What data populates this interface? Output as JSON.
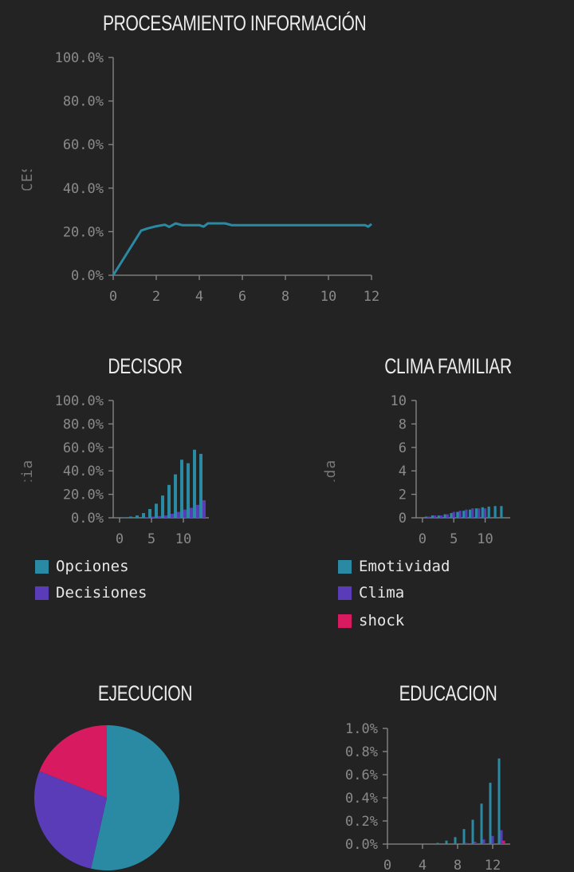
{
  "colors": {
    "teal": "#2a8aa3",
    "purple": "#5a3cb8",
    "pink": "#d81b60",
    "axis": "#8a8a8a"
  },
  "chart_data": [
    {
      "id": "procesamiento",
      "type": "line",
      "title": "PROCESAMIENTO INFORMACIÓN",
      "ylabel": "CALIDAD PROCESADOR FAMILI",
      "ylim": [
        0,
        100
      ],
      "xlim": [
        0,
        12
      ],
      "yticks": [
        "100.0%",
        "80.0%",
        "60.0%",
        "40.0%",
        "20.0%",
        "0.0%"
      ],
      "ytick_values": [
        100,
        80,
        60,
        40,
        20,
        0
      ],
      "xticks": [
        "0",
        "2",
        "4",
        "6",
        "8",
        "10",
        "12"
      ],
      "xtick_values": [
        0,
        2,
        4,
        6,
        8,
        10,
        12
      ],
      "series": [
        {
          "color": "teal",
          "x": [
            0,
            1.3,
            1.6,
            2.0,
            2.4,
            2.6,
            2.9,
            3.2,
            3.6,
            4.0,
            4.2,
            4.4,
            4.8,
            5.2,
            5.5,
            6.0,
            7.0,
            8.0,
            9.0,
            10.0,
            11.0,
            11.7,
            11.85,
            12.0
          ],
          "y": [
            0,
            20.5,
            21.5,
            22.5,
            23.2,
            22.2,
            23.8,
            23,
            23,
            23,
            22.3,
            23.8,
            23.8,
            23.8,
            23,
            23,
            23,
            23,
            23,
            23,
            23,
            23,
            22.3,
            23.5
          ]
        }
      ]
    },
    {
      "id": "decisor",
      "type": "bar",
      "title": "DECISOR",
      "ylabel": "Eficacia decis",
      "ylim": [
        0,
        100
      ],
      "xlim": [
        -1,
        14
      ],
      "yticks": [
        "100.0%",
        "80.0%",
        "60.0%",
        "40.0%",
        "20.0%",
        "0.0%"
      ],
      "ytick_values": [
        100,
        80,
        60,
        40,
        20,
        0
      ],
      "xticks": [
        "0",
        "5",
        "10"
      ],
      "xtick_values": [
        0,
        5,
        10
      ],
      "x": [
        1,
        2,
        3,
        4,
        5,
        6,
        7,
        8,
        9,
        10,
        11,
        12,
        13
      ],
      "series": [
        {
          "name": "Opciones",
          "color": "teal",
          "values": [
            0.5,
            1,
            2,
            4,
            7.5,
            12,
            19,
            28,
            37,
            49.5,
            46.5,
            58,
            54.5
          ]
        },
        {
          "name": "Decisiones",
          "color": "purple",
          "values": [
            0,
            0,
            0,
            0.5,
            1,
            1.5,
            2,
            3.5,
            5,
            7,
            8.5,
            11,
            15
          ]
        }
      ]
    },
    {
      "id": "clima",
      "type": "bar",
      "title": "CLIMA FAMILIAR",
      "ylabel": "Intensidad emoci",
      "ylim": [
        0,
        10
      ],
      "xlim": [
        -1,
        14
      ],
      "yticks": [
        "10",
        "8",
        "6",
        "4",
        "2",
        "0"
      ],
      "ytick_values": [
        10,
        8,
        6,
        4,
        2,
        0
      ],
      "xticks": [
        "0",
        "5",
        "10"
      ],
      "xtick_values": [
        0,
        5,
        10
      ],
      "x": [
        1,
        2,
        3,
        4,
        5,
        6,
        7,
        8,
        9,
        10,
        11,
        12,
        13
      ],
      "series": [
        {
          "name": "Emotividad",
          "color": "teal",
          "values": [
            0.1,
            0.2,
            0.2,
            0.3,
            0.4,
            0.5,
            0.6,
            0.7,
            0.8,
            0.9,
            0.95,
            1.0,
            1.0
          ]
        },
        {
          "name": "Clima",
          "color": "purple",
          "values": [
            0.1,
            0.2,
            0.2,
            0.3,
            0.5,
            0.6,
            0.7,
            0.8,
            0.8,
            0.8,
            0.0,
            0.0,
            0.0
          ]
        },
        {
          "name": "shock",
          "color": "pink",
          "values": [
            0,
            0,
            0,
            0,
            0,
            0,
            0,
            0,
            0,
            0,
            0,
            0,
            0
          ]
        }
      ]
    },
    {
      "id": "ejecucion",
      "type": "pie",
      "title": "EJECUCION",
      "slices": [
        {
          "color": "teal",
          "value": 53.5
        },
        {
          "color": "purple",
          "value": 27.5
        },
        {
          "color": "pink",
          "value": 19
        }
      ]
    },
    {
      "id": "educacion",
      "type": "bar",
      "title": "EDUCACION",
      "ylim": [
        0,
        1
      ],
      "xlim": [
        0,
        14
      ],
      "yticks": [
        "1.0%",
        "0.8%",
        "0.6%",
        "0.4%",
        "0.2%",
        "0.0%"
      ],
      "ytick_values": [
        1.0,
        0.8,
        0.6,
        0.4,
        0.2,
        0.0
      ],
      "xticks": [
        "0",
        "4",
        "8",
        "12"
      ],
      "xtick_values": [
        0,
        4,
        8,
        12
      ],
      "x": [
        6,
        7,
        8,
        9,
        10,
        11,
        12,
        13
      ],
      "series": [
        {
          "color": "teal",
          "values": [
            0.01,
            0.03,
            0.06,
            0.13,
            0.21,
            0.35,
            0.53,
            0.74
          ]
        },
        {
          "color": "purple",
          "values": [
            0,
            0,
            0,
            0.01,
            0.02,
            0.04,
            0.07,
            0.12
          ]
        },
        {
          "color": "pink",
          "values": [
            0,
            0,
            0,
            0,
            0,
            0,
            0,
            0.03
          ]
        }
      ]
    }
  ]
}
